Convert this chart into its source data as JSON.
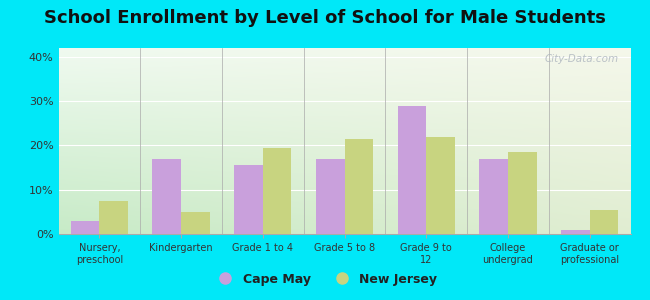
{
  "title": "School Enrollment by Level of School for Male Students",
  "categories": [
    "Nursery,\npreschool",
    "Kindergarten",
    "Grade 1 to 4",
    "Grade 5 to 8",
    "Grade 9 to\n12",
    "College\nundergrad",
    "Graduate or\nprofessional"
  ],
  "cape_may": [
    3.0,
    17.0,
    15.5,
    17.0,
    29.0,
    17.0,
    1.0
  ],
  "new_jersey": [
    7.5,
    5.0,
    19.5,
    21.5,
    22.0,
    18.5,
    5.5
  ],
  "cape_may_color": "#c9a0dc",
  "new_jersey_color": "#c8d480",
  "background_outer": "#00e8f8",
  "bg_color_topleft": "#f0f8f0",
  "bg_color_topright": "#f8f8f0",
  "bg_color_bottomleft": "#c8e8c8",
  "bg_color_bottomright": "#e8f0d8",
  "ylim": [
    0,
    42
  ],
  "yticks": [
    0,
    10,
    20,
    30,
    40
  ],
  "ytick_labels": [
    "0%",
    "10%",
    "20%",
    "30%",
    "40%"
  ],
  "title_fontsize": 13,
  "legend_labels": [
    "Cape May",
    "New Jersey"
  ],
  "watermark": "City-Data.com"
}
